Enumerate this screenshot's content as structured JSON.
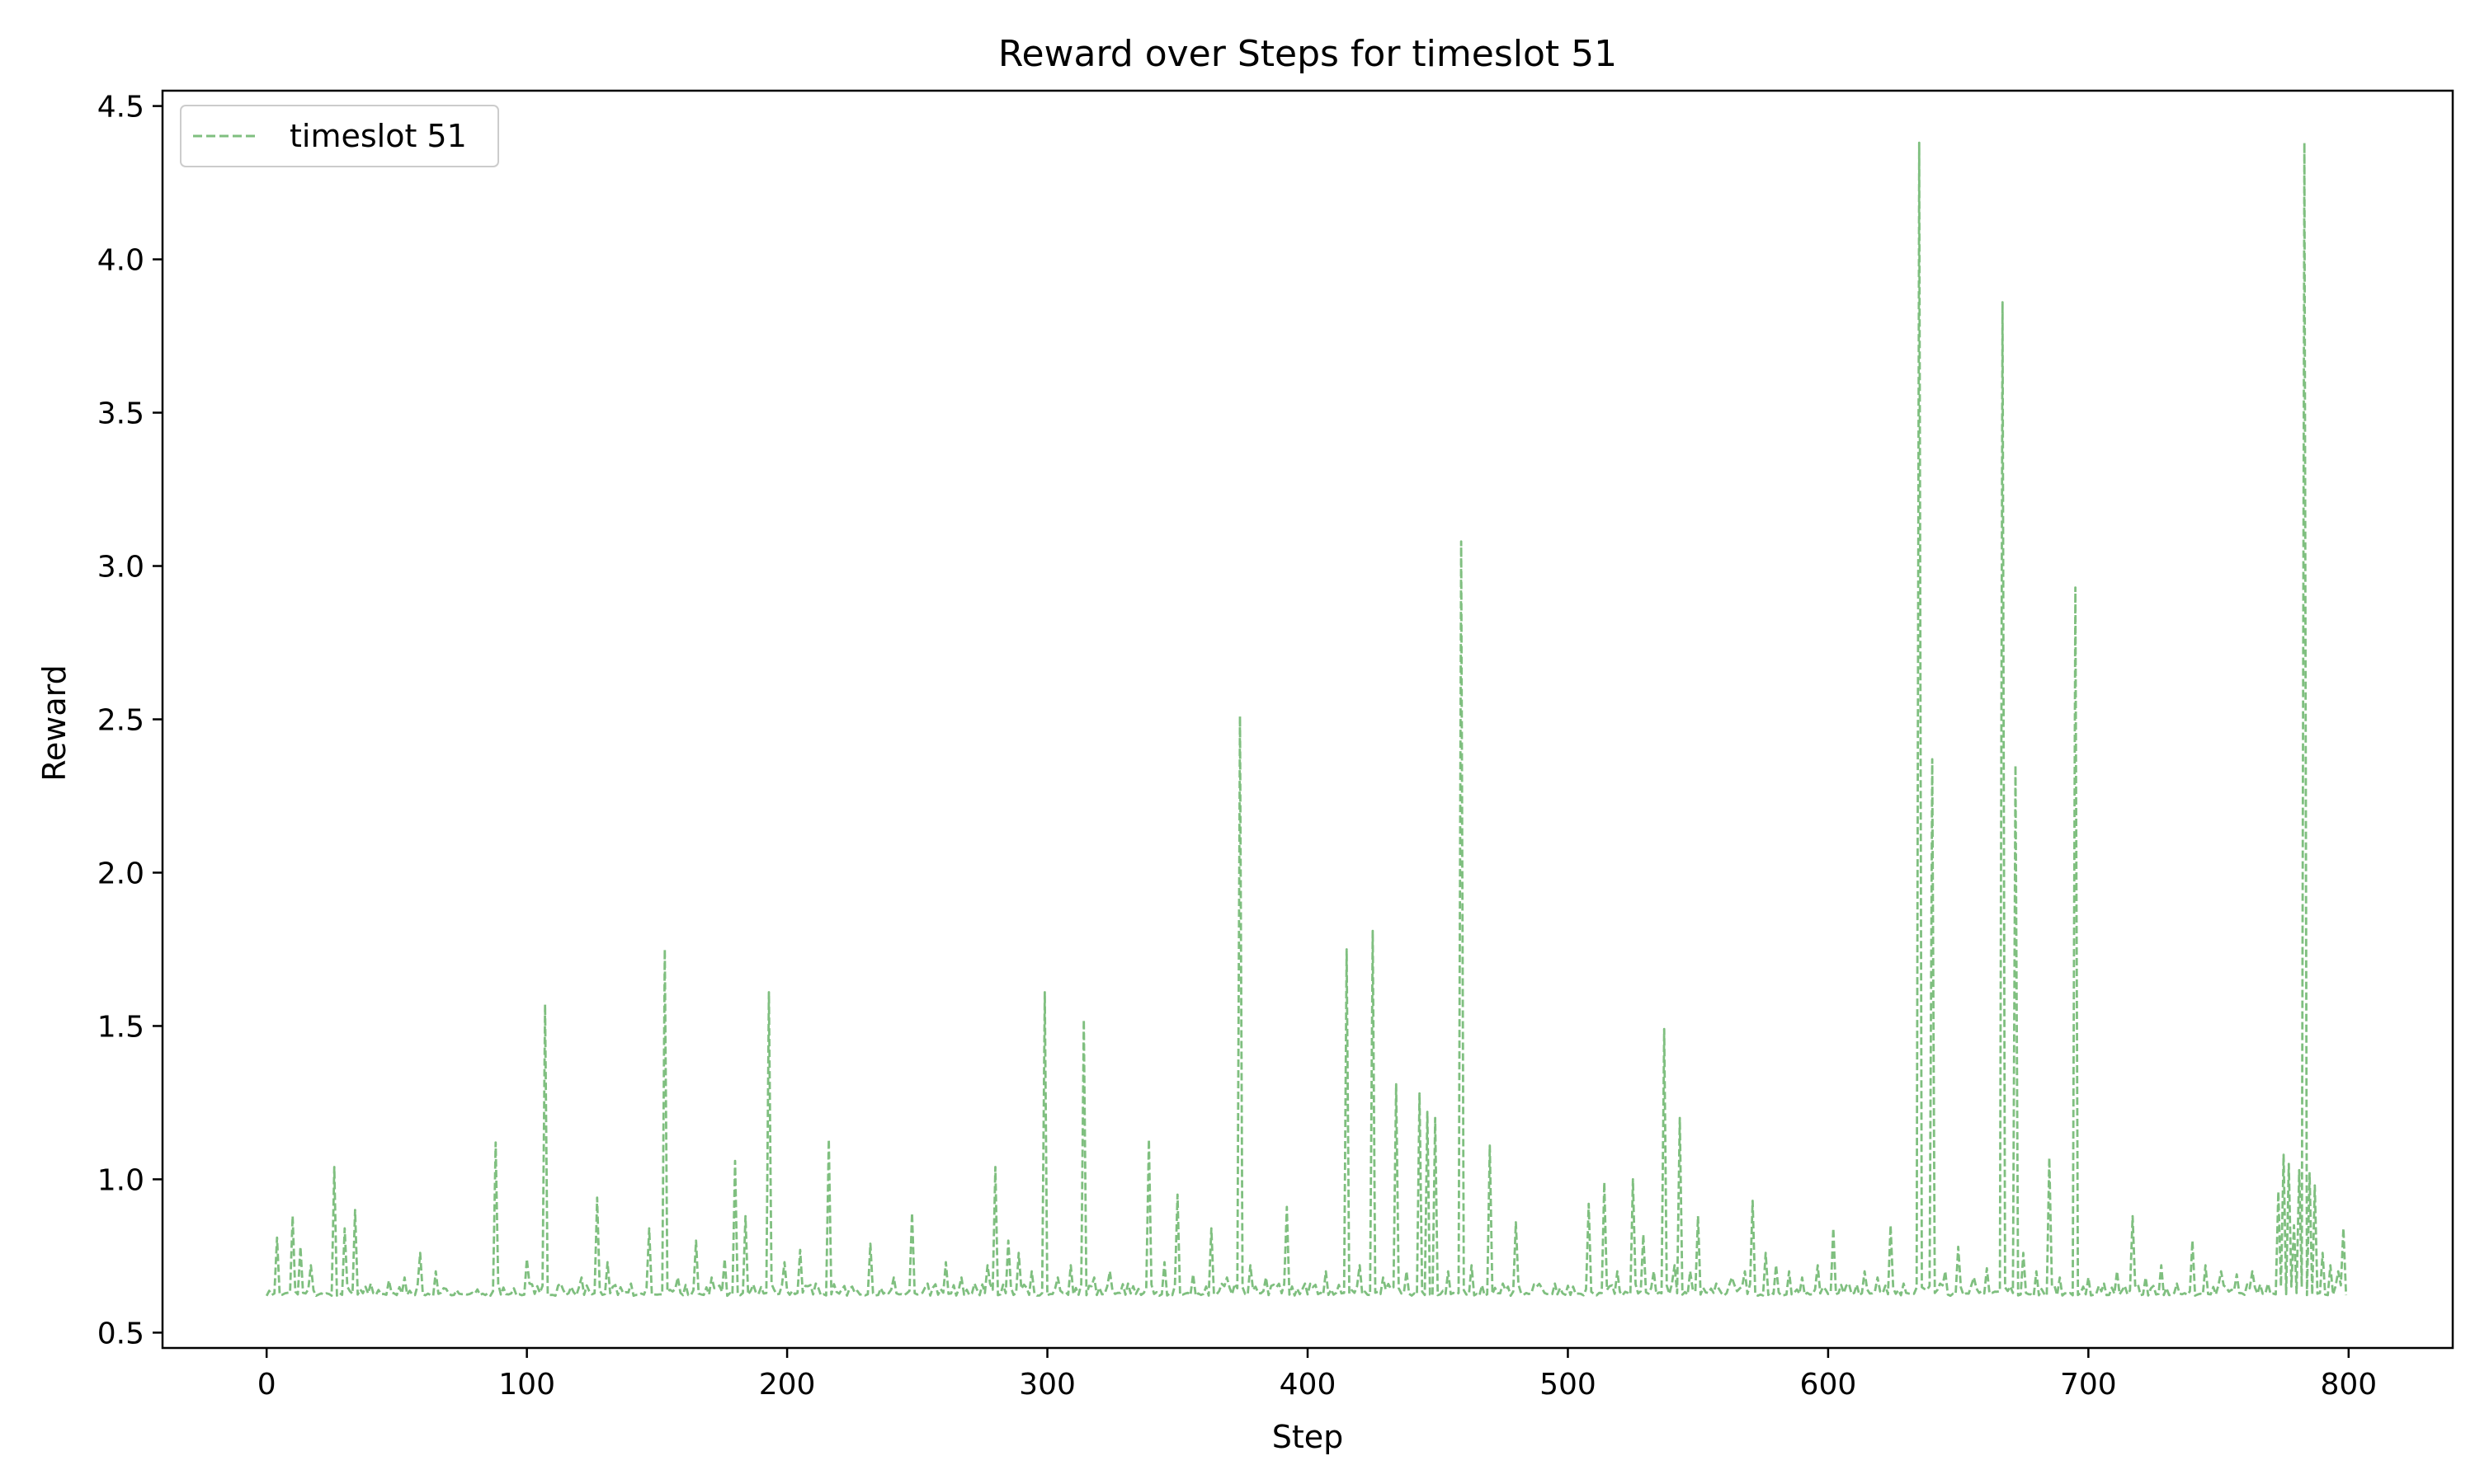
{
  "chart_data": {
    "type": "line",
    "title": "Reward over Steps for timeslot 51",
    "xlabel": "Step",
    "ylabel": "Reward",
    "xlim": [
      -40,
      840
    ],
    "ylim": [
      0.45,
      4.55
    ],
    "xticks": [
      0,
      100,
      200,
      300,
      400,
      500,
      600,
      700,
      800
    ],
    "yticks": [
      0.5,
      1.0,
      1.5,
      2.0,
      2.5,
      3.0,
      3.5,
      4.0,
      4.5
    ],
    "xtick_labels": [
      "0",
      "100",
      "200",
      "300",
      "400",
      "500",
      "600",
      "700",
      "800"
    ],
    "ytick_labels": [
      "0.5",
      "1.0",
      "1.5",
      "2.0",
      "2.5",
      "3.0",
      "3.5",
      "4.0",
      "4.5"
    ],
    "grid": false,
    "legend_position": "top-left",
    "baseline": 0.62,
    "x_range": [
      0,
      799
    ],
    "series": [
      {
        "name": "timeslot 51",
        "color": "#7fbf7f",
        "line_style": "dashed",
        "peaks": [
          {
            "x": 4,
            "y": 0.81
          },
          {
            "x": 10,
            "y": 0.88
          },
          {
            "x": 13,
            "y": 0.78
          },
          {
            "x": 17,
            "y": 0.72
          },
          {
            "x": 26,
            "y": 1.04
          },
          {
            "x": 30,
            "y": 0.84
          },
          {
            "x": 34,
            "y": 0.9
          },
          {
            "x": 40,
            "y": 0.66
          },
          {
            "x": 47,
            "y": 0.67
          },
          {
            "x": 53,
            "y": 0.68
          },
          {
            "x": 59,
            "y": 0.76
          },
          {
            "x": 65,
            "y": 0.7
          },
          {
            "x": 88,
            "y": 1.12
          },
          {
            "x": 100,
            "y": 0.74
          },
          {
            "x": 107,
            "y": 1.57
          },
          {
            "x": 113,
            "y": 0.66
          },
          {
            "x": 121,
            "y": 0.68
          },
          {
            "x": 127,
            "y": 0.94
          },
          {
            "x": 131,
            "y": 0.73
          },
          {
            "x": 140,
            "y": 0.66
          },
          {
            "x": 147,
            "y": 0.84
          },
          {
            "x": 153,
            "y": 1.75
          },
          {
            "x": 158,
            "y": 0.68
          },
          {
            "x": 165,
            "y": 0.8
          },
          {
            "x": 171,
            "y": 0.68
          },
          {
            "x": 176,
            "y": 0.74
          },
          {
            "x": 180,
            "y": 1.06
          },
          {
            "x": 184,
            "y": 0.88
          },
          {
            "x": 193,
            "y": 1.61
          },
          {
            "x": 199,
            "y": 0.73
          },
          {
            "x": 205,
            "y": 0.77
          },
          {
            "x": 211,
            "y": 0.66
          },
          {
            "x": 216,
            "y": 1.13
          },
          {
            "x": 225,
            "y": 0.65
          },
          {
            "x": 232,
            "y": 0.79
          },
          {
            "x": 241,
            "y": 0.68
          },
          {
            "x": 248,
            "y": 0.89
          },
          {
            "x": 254,
            "y": 0.66
          },
          {
            "x": 261,
            "y": 0.73
          },
          {
            "x": 267,
            "y": 0.68
          },
          {
            "x": 272,
            "y": 0.66
          },
          {
            "x": 277,
            "y": 0.72
          },
          {
            "x": 280,
            "y": 1.04
          },
          {
            "x": 285,
            "y": 0.8
          },
          {
            "x": 289,
            "y": 0.76
          },
          {
            "x": 294,
            "y": 0.7
          },
          {
            "x": 299,
            "y": 1.61
          },
          {
            "x": 304,
            "y": 0.68
          },
          {
            "x": 309,
            "y": 0.72
          },
          {
            "x": 314,
            "y": 1.52
          },
          {
            "x": 318,
            "y": 0.68
          },
          {
            "x": 324,
            "y": 0.7
          },
          {
            "x": 331,
            "y": 0.66
          },
          {
            "x": 339,
            "y": 1.13
          },
          {
            "x": 345,
            "y": 0.73
          },
          {
            "x": 350,
            "y": 0.95
          },
          {
            "x": 356,
            "y": 0.69
          },
          {
            "x": 363,
            "y": 0.84
          },
          {
            "x": 369,
            "y": 0.68
          },
          {
            "x": 374,
            "y": 2.51
          },
          {
            "x": 378,
            "y": 0.72
          },
          {
            "x": 384,
            "y": 0.68
          },
          {
            "x": 392,
            "y": 0.91
          },
          {
            "x": 399,
            "y": 0.66
          },
          {
            "x": 407,
            "y": 0.7
          },
          {
            "x": 415,
            "y": 1.75
          },
          {
            "x": 420,
            "y": 0.72
          },
          {
            "x": 425,
            "y": 1.81
          },
          {
            "x": 429,
            "y": 0.68
          },
          {
            "x": 434,
            "y": 1.31
          },
          {
            "x": 438,
            "y": 0.7
          },
          {
            "x": 443,
            "y": 1.28
          },
          {
            "x": 446,
            "y": 1.22
          },
          {
            "x": 449,
            "y": 1.2
          },
          {
            "x": 454,
            "y": 0.7
          },
          {
            "x": 459,
            "y": 3.08
          },
          {
            "x": 463,
            "y": 0.72
          },
          {
            "x": 470,
            "y": 1.11
          },
          {
            "x": 475,
            "y": 0.66
          },
          {
            "x": 480,
            "y": 0.86
          },
          {
            "x": 488,
            "y": 0.65
          },
          {
            "x": 495,
            "y": 0.66
          },
          {
            "x": 502,
            "y": 0.65
          },
          {
            "x": 508,
            "y": 0.92
          },
          {
            "x": 514,
            "y": 0.99
          },
          {
            "x": 519,
            "y": 0.7
          },
          {
            "x": 525,
            "y": 1.0
          },
          {
            "x": 529,
            "y": 0.82
          },
          {
            "x": 533,
            "y": 0.7
          },
          {
            "x": 537,
            "y": 1.49
          },
          {
            "x": 541,
            "y": 0.72
          },
          {
            "x": 543,
            "y": 1.2
          },
          {
            "x": 547,
            "y": 0.7
          },
          {
            "x": 550,
            "y": 0.88
          },
          {
            "x": 557,
            "y": 0.66
          },
          {
            "x": 563,
            "y": 0.68
          },
          {
            "x": 568,
            "y": 0.7
          },
          {
            "x": 571,
            "y": 0.93
          },
          {
            "x": 576,
            "y": 0.76
          },
          {
            "x": 580,
            "y": 0.72
          },
          {
            "x": 585,
            "y": 0.7
          },
          {
            "x": 590,
            "y": 0.68
          },
          {
            "x": 596,
            "y": 0.72
          },
          {
            "x": 602,
            "y": 0.84
          },
          {
            "x": 608,
            "y": 0.66
          },
          {
            "x": 614,
            "y": 0.7
          },
          {
            "x": 619,
            "y": 0.68
          },
          {
            "x": 624,
            "y": 0.85
          },
          {
            "x": 629,
            "y": 0.66
          },
          {
            "x": 635,
            "y": 4.38
          },
          {
            "x": 640,
            "y": 2.37
          },
          {
            "x": 645,
            "y": 0.7
          },
          {
            "x": 650,
            "y": 0.78
          },
          {
            "x": 656,
            "y": 0.68
          },
          {
            "x": 661,
            "y": 0.71
          },
          {
            "x": 667,
            "y": 3.86
          },
          {
            "x": 672,
            "y": 2.35
          },
          {
            "x": 675,
            "y": 0.76
          },
          {
            "x": 680,
            "y": 0.7
          },
          {
            "x": 685,
            "y": 1.07
          },
          {
            "x": 689,
            "y": 0.68
          },
          {
            "x": 695,
            "y": 2.93
          },
          {
            "x": 700,
            "y": 0.68
          },
          {
            "x": 706,
            "y": 0.66
          },
          {
            "x": 711,
            "y": 0.7
          },
          {
            "x": 717,
            "y": 0.88
          },
          {
            "x": 722,
            "y": 0.68
          },
          {
            "x": 728,
            "y": 0.72
          },
          {
            "x": 734,
            "y": 0.66
          },
          {
            "x": 740,
            "y": 0.8
          },
          {
            "x": 745,
            "y": 0.72
          },
          {
            "x": 751,
            "y": 0.7
          },
          {
            "x": 757,
            "y": 0.69
          },
          {
            "x": 763,
            "y": 0.7
          },
          {
            "x": 769,
            "y": 0.66
          },
          {
            "x": 773,
            "y": 0.96
          },
          {
            "x": 775,
            "y": 1.08
          },
          {
            "x": 777,
            "y": 1.05
          },
          {
            "x": 779,
            "y": 0.85
          },
          {
            "x": 781,
            "y": 1.03
          },
          {
            "x": 783,
            "y": 4.38
          },
          {
            "x": 785,
            "y": 1.02
          },
          {
            "x": 787,
            "y": 0.98
          },
          {
            "x": 790,
            "y": 0.76
          },
          {
            "x": 793,
            "y": 0.72
          },
          {
            "x": 796,
            "y": 0.7
          },
          {
            "x": 798,
            "y": 0.84
          }
        ]
      }
    ]
  }
}
